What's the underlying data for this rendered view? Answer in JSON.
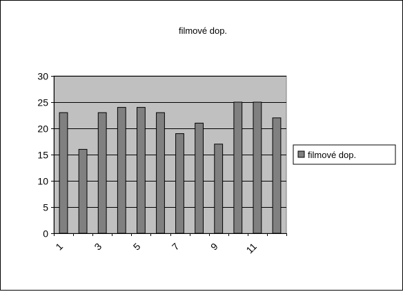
{
  "chart_data": {
    "type": "bar",
    "title": "filmové dop.",
    "categories": [
      "1",
      "2",
      "3",
      "4",
      "5",
      "6",
      "7",
      "8",
      "9",
      "10",
      "11",
      "12"
    ],
    "x_tick_labels": [
      "1",
      "",
      "3",
      "",
      "5",
      "",
      "7",
      "",
      "9",
      "",
      "11",
      ""
    ],
    "series": [
      {
        "name": "filmové dop.",
        "values": [
          23,
          16,
          23,
          24,
          24,
          23,
          19,
          21,
          17,
          25,
          25,
          22
        ]
      }
    ],
    "y_ticks": [
      0,
      5,
      10,
      15,
      20,
      25,
      30
    ],
    "ylim": [
      0,
      30
    ],
    "xlabel": "",
    "ylabel": "",
    "grid": true,
    "legend_position": "right",
    "colors": {
      "bar_fill": "#808080",
      "plot_background": "#c0c0c0",
      "gridline": "#000000",
      "border": "#000000"
    }
  }
}
